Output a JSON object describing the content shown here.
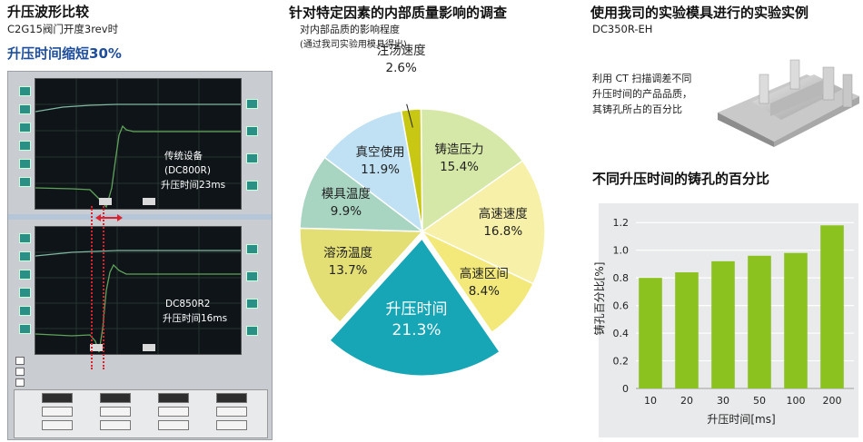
{
  "left": {
    "title": "升压波形比较",
    "subtitle": "C2G15阀门开度3rev时",
    "highlight": "升压时间缩短30%",
    "scope_top_label": [
      "传统设备",
      "(DC800R)",
      "升压时间23ms"
    ],
    "scope_bottom_label": [
      "DC850R2",
      "升压时间16ms"
    ]
  },
  "middle": {
    "title": "针对特定因素的内部质量影响的调查",
    "subtitle1": "对内部品质的影响程度",
    "subtitle2": "(通过我司实验用模具得出)"
  },
  "right": {
    "title": "使用我司的实验模具进行的实验实例",
    "model": "DC350R-EH",
    "description": [
      "利用 CT 扫描调差不同",
      "升压时间的产品品质，",
      "其铸孔所占的百分比"
    ],
    "chart_title": "不同升压时间的铸孔的百分比"
  },
  "chart_data": [
    {
      "type": "pie",
      "slices": [
        {
          "label": "注汤速度",
          "value": 2.6,
          "value_label": "2.6%",
          "color": "#c8c814"
        },
        {
          "label": "铸造压力",
          "value": 15.4,
          "value_label": "15.4%",
          "color": "#d6e8a8"
        },
        {
          "label": "高速速度",
          "value": 16.8,
          "value_label": "16.8%",
          "color": "#f7f0a8"
        },
        {
          "label": "高速区间",
          "value": 8.4,
          "value_label": "8.4%",
          "color": "#f3e97a"
        },
        {
          "label": "升压时间",
          "value": 21.3,
          "value_label": "21.3%",
          "color": "#16a6b6",
          "exploded": true
        },
        {
          "label": "溶汤温度",
          "value": 13.7,
          "value_label": "13.7%",
          "color": "#e3df74"
        },
        {
          "label": "模具温度",
          "value": 9.9,
          "value_label": "9.9%",
          "color": "#a8d4c2"
        },
        {
          "label": "真空使用",
          "value": 11.9,
          "value_label": "11.9%",
          "color": "#bfe1f3"
        }
      ]
    },
    {
      "type": "bar",
      "title": "不同升压时间的铸孔的百分比",
      "categories": [
        "10",
        "20",
        "30",
        "50",
        "100",
        "200"
      ],
      "values": [
        0.8,
        0.84,
        0.92,
        0.96,
        0.98,
        1.18
      ],
      "xlabel": "升压时间[ms]",
      "ylabel": "铸孔百分比[%]",
      "ylim": [
        0,
        1.3
      ],
      "yticks": [
        "0",
        "0.2",
        "0.4",
        "0.6",
        "0.8",
        "1.0",
        "1.2"
      ],
      "bar_color": "#8cc21f",
      "grid": true
    }
  ]
}
